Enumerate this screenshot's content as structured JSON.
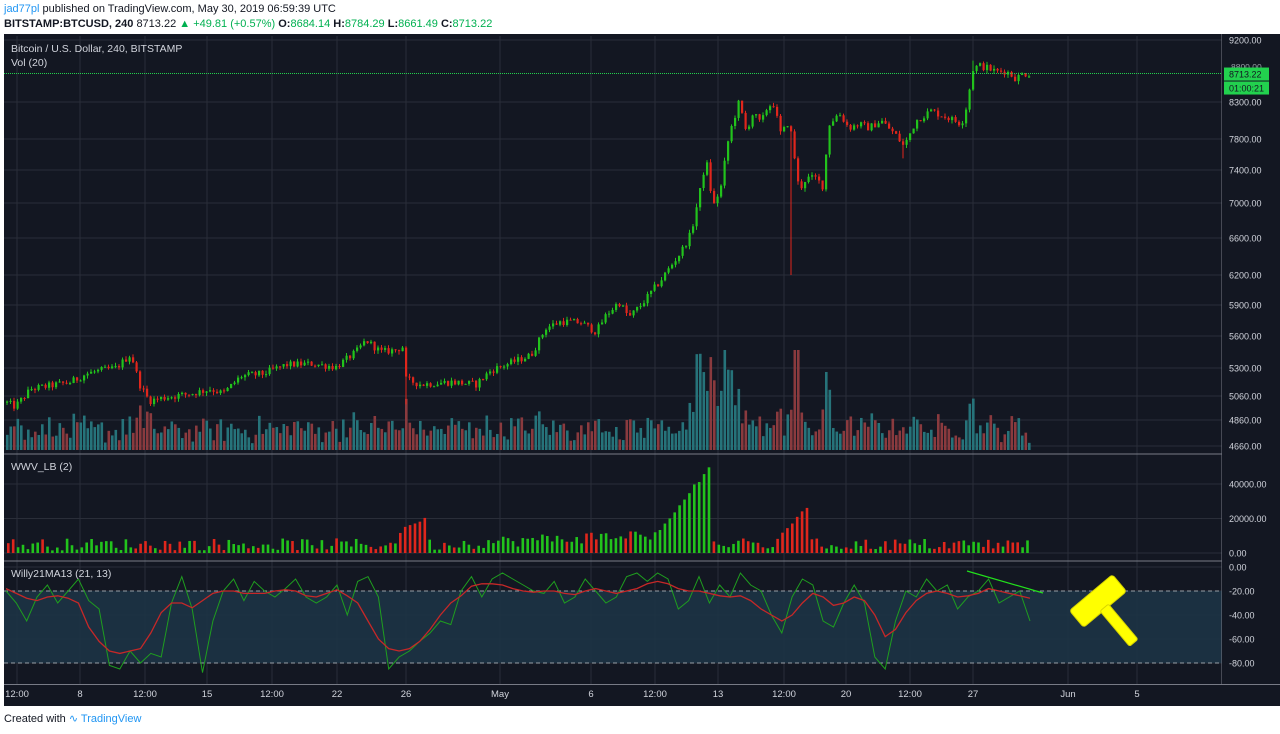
{
  "header": {
    "author": "jad77pl",
    "published_text": "published on TradingView.com, May 30, 2019 06:59:39 UTC",
    "symbol": "BITSTAMP:BTCUSD, 240",
    "last": "8713.22",
    "change": "▲ +49.81 (+0.57%)",
    "o_label": "O:",
    "o_val": "8684.14",
    "h_label": "H:",
    "h_val": "8784.29",
    "l_label": "L:",
    "l_val": "8661.49",
    "c_label": "C:",
    "c_val": "8713.22"
  },
  "footer": {
    "created_with": "Created with",
    "brand": "TradingView"
  },
  "colors": {
    "background": "#131722",
    "grid": "#2a2e39",
    "up": "#22c31c",
    "down": "#e0261c",
    "vol_up": "#26737a",
    "vol_down": "#8a3a3e",
    "price_line": "#22d14e",
    "willy": "#1f9e1f",
    "willy_ma": "#c62828",
    "band": "#1d3345",
    "annotation": "#ffff00"
  },
  "chart_data": [
    {
      "type": "candlestick",
      "title": "Bitcoin / U.S. Dollar, 240, BITSTAMP",
      "sub_label": "Vol (20)",
      "y_ticks": [
        9200,
        8300,
        7800,
        7400,
        7000,
        6600,
        6200,
        5900,
        5600,
        5300,
        5060,
        4860,
        4660
      ],
      "ylim": [
        4620,
        9250
      ],
      "last_price": "8713.22",
      "countdown": "01:00:21",
      "partial_tick": "8800.00",
      "path_anchors": [
        [
          0,
          5030
        ],
        [
          14,
          4970
        ],
        [
          30,
          5120
        ],
        [
          50,
          5150
        ],
        [
          70,
          5180
        ],
        [
          85,
          5250
        ],
        [
          100,
          5280
        ],
        [
          115,
          5300
        ],
        [
          130,
          5430
        ],
        [
          138,
          5170
        ],
        [
          148,
          5020
        ],
        [
          165,
          5050
        ],
        [
          190,
          5080
        ],
        [
          210,
          5120
        ],
        [
          222,
          5080
        ],
        [
          240,
          5230
        ],
        [
          262,
          5250
        ],
        [
          285,
          5330
        ],
        [
          310,
          5340
        ],
        [
          335,
          5310
        ],
        [
          355,
          5450
        ],
        [
          365,
          5560
        ],
        [
          380,
          5450
        ],
        [
          395,
          5470
        ],
        [
          402,
          5500
        ],
        [
          405,
          5200
        ],
        [
          420,
          5160
        ],
        [
          450,
          5180
        ],
        [
          475,
          5160
        ],
        [
          490,
          5280
        ],
        [
          510,
          5350
        ],
        [
          530,
          5420
        ],
        [
          545,
          5680
        ],
        [
          560,
          5740
        ],
        [
          580,
          5730
        ],
        [
          595,
          5640
        ],
        [
          605,
          5800
        ],
        [
          618,
          5930
        ],
        [
          628,
          5780
        ],
        [
          640,
          5900
        ],
        [
          660,
          6150
        ],
        [
          680,
          6450
        ],
        [
          690,
          6650
        ],
        [
          700,
          7200
        ],
        [
          705,
          7550
        ],
        [
          712,
          6950
        ],
        [
          720,
          7200
        ],
        [
          728,
          7850
        ],
        [
          738,
          8300
        ],
        [
          745,
          7900
        ],
        [
          752,
          8150
        ],
        [
          760,
          8000
        ],
        [
          765,
          8200
        ],
        [
          772,
          8300
        ],
        [
          780,
          7850
        ],
        [
          788,
          8050
        ],
        [
          792,
          7700
        ],
        [
          798,
          7150
        ],
        [
          805,
          7300
        ],
        [
          815,
          7300
        ],
        [
          822,
          7200
        ],
        [
          828,
          8000
        ],
        [
          838,
          8150
        ],
        [
          848,
          7950
        ],
        [
          858,
          8000
        ],
        [
          868,
          7950
        ],
        [
          880,
          8050
        ],
        [
          895,
          7850
        ],
        [
          903,
          7700
        ],
        [
          915,
          8050
        ],
        [
          930,
          8180
        ],
        [
          945,
          8100
        ],
        [
          958,
          8020
        ],
        [
          963,
          8070
        ],
        [
          968,
          8450
        ],
        [
          972,
          8780
        ],
        [
          978,
          8830
        ],
        [
          985,
          8800
        ],
        [
          995,
          8740
        ],
        [
          1005,
          8750
        ],
        [
          1015,
          8640
        ],
        [
          1022,
          8710
        ],
        [
          1030,
          8713
        ]
      ],
      "wicks": [
        [
          791,
          6200
        ],
        [
          406,
          4990
        ],
        [
          903,
          7550
        ],
        [
          972,
          8900
        ]
      ]
    },
    {
      "type": "bar",
      "title": "WWV_LB (2)",
      "y_ticks": [
        40000,
        20000,
        0
      ],
      "ylim": [
        0,
        55000
      ]
    },
    {
      "type": "line",
      "title": "Willy21MA13 (21, 13)",
      "y_ticks": [
        0,
        -20,
        -40,
        -60,
        -80
      ],
      "ylim": [
        -100,
        0
      ],
      "upper_level": -20,
      "lower_level": -80,
      "series": [
        {
          "values": [
            -20,
            -30,
            -45,
            -25,
            -15,
            -30,
            -20,
            -10,
            -28,
            -35,
            -82,
            -85,
            -70,
            -80,
            -72,
            -75,
            -30,
            -8,
            -35,
            -88,
            -45,
            -20,
            -10,
            -28,
            -12,
            -20,
            -25,
            -18,
            -10,
            -25,
            -30,
            -25,
            -15,
            -40,
            -12,
            -8,
            -25,
            -85,
            -75,
            -70,
            -62,
            -55,
            -45,
            -48,
            -20,
            -8,
            -25,
            -10,
            -5,
            -10,
            -15,
            -20,
            -22,
            -12,
            -30,
            -25,
            -10,
            -20,
            -30,
            -25,
            -8,
            -5,
            -12,
            -5,
            -10,
            -35,
            -28,
            -8,
            -30,
            -15,
            -25,
            -5,
            -15,
            -20,
            -40,
            -55,
            -25,
            -10,
            -15,
            -45,
            -50,
            -30,
            -15,
            -30,
            -75,
            -85,
            -45,
            -20,
            -25,
            -10,
            -20,
            -15,
            -35,
            -25,
            -20,
            -10,
            -30,
            -25,
            -20,
            -45
          ]
        },
        {
          "values": [
            -18,
            -22,
            -26,
            -28,
            -25,
            -24,
            -26,
            -30,
            -50,
            -62,
            -70,
            -72,
            -70,
            -68,
            -55,
            -38,
            -30,
            -30,
            -34,
            -28,
            -22,
            -20,
            -20,
            -22,
            -22,
            -22,
            -20,
            -19,
            -20,
            -24,
            -25,
            -22,
            -19,
            -24,
            -30,
            -45,
            -60,
            -68,
            -70,
            -68,
            -62,
            -52,
            -40,
            -30,
            -24,
            -16,
            -14,
            -14,
            -15,
            -18,
            -20,
            -21,
            -20,
            -20,
            -22,
            -23,
            -20,
            -18,
            -20,
            -22,
            -20,
            -18,
            -14,
            -12,
            -14,
            -18,
            -20,
            -20,
            -22,
            -24,
            -25,
            -24,
            -28,
            -35,
            -40,
            -45,
            -40,
            -30,
            -22,
            -25,
            -32,
            -30,
            -25,
            -28,
            -40,
            -58,
            -52,
            -38,
            -28,
            -22,
            -20,
            -22,
            -25,
            -24,
            -22,
            -18,
            -20,
            -22,
            -24,
            -26
          ]
        }
      ]
    }
  ],
  "x_axis": {
    "labels": [
      "12:00",
      "8",
      "12:00",
      "15",
      "12:00",
      "22",
      "26",
      "May",
      "6",
      "12:00",
      "13",
      "12:00",
      "20",
      "12:00",
      "27",
      "Jun",
      "5"
    ]
  }
}
